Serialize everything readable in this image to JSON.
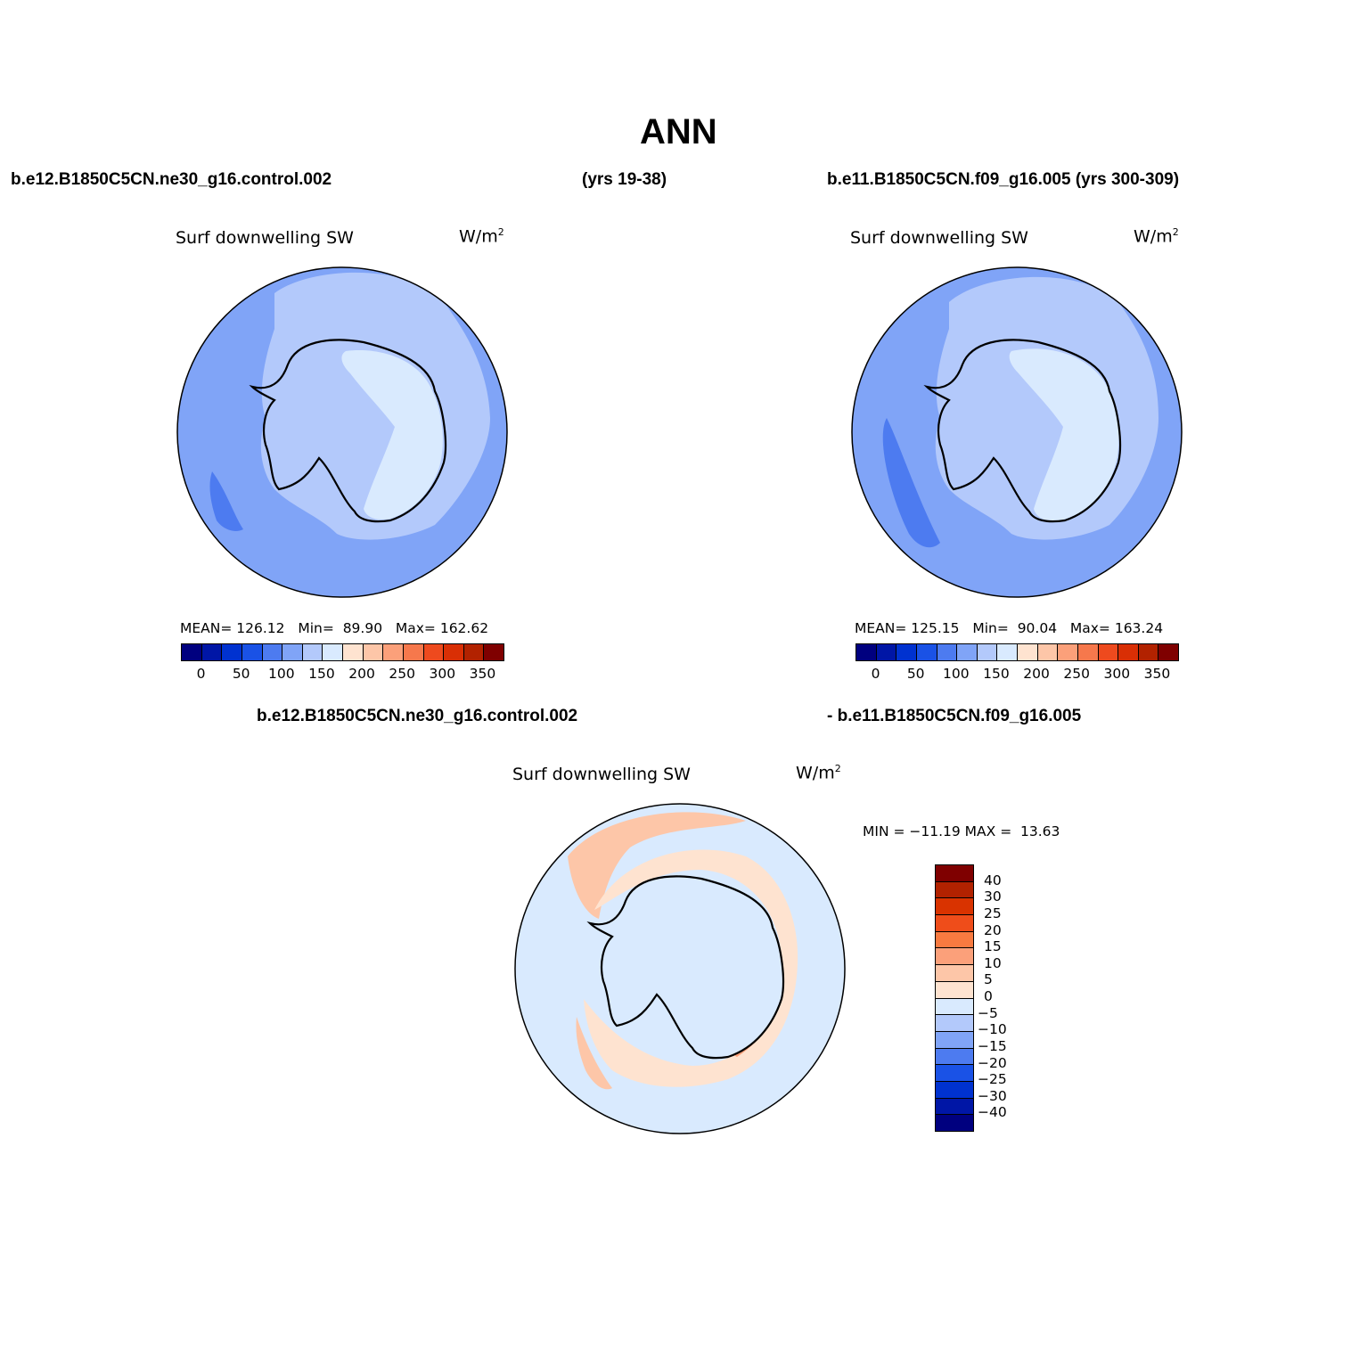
{
  "title": "ANN",
  "top_left_case": "b.e12.B1850C5CN.ne30_g16.control.002",
  "top_left_years": "(yrs 19-38)",
  "top_right_case": "b.e11.B1850C5CN.f09_g16.005 (yrs 300-309)",
  "bottom_case_a": "b.e12.B1850C5CN.ne30_g16.control.002",
  "bottom_case_b": "- b.e11.B1850C5CN.f09_g16.005",
  "panels": {
    "left": {
      "variable": "Surf downwelling SW",
      "units_base": "W/m",
      "units_exp": "2",
      "mean_label": "MEAN=",
      "mean": "126.12",
      "min_label": "Min=",
      "min": "89.90",
      "max_label": "Max=",
      "max": "162.62"
    },
    "right": {
      "variable": "Surf downwelling SW",
      "units_base": "W/m",
      "units_exp": "2",
      "mean_label": "MEAN=",
      "mean": "125.15",
      "min_label": "Min=",
      "min": "90.04",
      "max_label": "Max=",
      "max": "163.24"
    },
    "diff": {
      "variable": "Surf downwelling SW",
      "units_base": "W/m",
      "units_exp": "2",
      "minmax": "MIN = −11.19 MAX =  13.63"
    }
  },
  "colorbar_abs": {
    "colors": [
      "#00007f",
      "#0016a6",
      "#0032d0",
      "#1a52e6",
      "#4d7bf0",
      "#80a4f7",
      "#b3c9fb",
      "#d9eafe",
      "#fee3d0",
      "#fdc6a8",
      "#fba07a",
      "#f6784c",
      "#ee4a1e",
      "#d92f05",
      "#b22200",
      "#7f0000"
    ],
    "labels": [
      "0",
      "50",
      "100",
      "150",
      "200",
      "250",
      "300",
      "350"
    ]
  },
  "colorbar_diff": {
    "colors": [
      "#7f0000",
      "#b22200",
      "#d93300",
      "#ef4d1a",
      "#f87a40",
      "#fba07a",
      "#fdc6a8",
      "#fee3d0",
      "#d9eafe",
      "#b3c9fb",
      "#80a4f7",
      "#4d7bf0",
      "#1a52e6",
      "#0032d0",
      "#0016a6",
      "#00007f"
    ],
    "labels": [
      "40",
      "30",
      "25",
      "20",
      "15",
      "10",
      "5",
      "0",
      "−5",
      "−10",
      "−15",
      "−20",
      "−25",
      "−30",
      "−40"
    ]
  }
}
